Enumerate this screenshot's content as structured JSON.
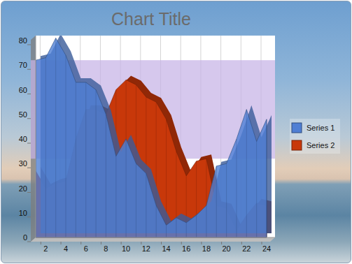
{
  "chart_data": {
    "type": "area",
    "title": "Chart Title",
    "x": [
      1,
      2,
      3,
      4,
      5,
      6,
      7,
      8,
      9,
      10,
      11,
      12,
      13,
      14,
      15,
      16,
      17,
      18,
      19,
      20,
      21,
      22,
      23,
      24
    ],
    "xlim": [
      1,
      24
    ],
    "xticks": [
      2,
      4,
      6,
      8,
      10,
      12,
      14,
      16,
      18,
      20,
      22,
      24
    ],
    "ylim": [
      0,
      82
    ],
    "yticks": [
      0,
      10,
      20,
      30,
      40,
      50,
      60,
      70,
      80
    ],
    "grid": true,
    "legend": "right",
    "plot_band": {
      "from": 32,
      "to": 72
    },
    "series": [
      {
        "name": "Series 1",
        "color": "#4f7fd4",
        "values": [
          72,
          73,
          81,
          74,
          63,
          63,
          60,
          50,
          33,
          40,
          30,
          26,
          13,
          5,
          8,
          6,
          9,
          13,
          29,
          30,
          40,
          52,
          39,
          48
        ]
      },
      {
        "name": "Series 2",
        "color": "#c8380a",
        "values": [
          27,
          20,
          22,
          23,
          40,
          52,
          52,
          50,
          60,
          64,
          62,
          57,
          55,
          48,
          35,
          25,
          31,
          32,
          13,
          12,
          3,
          9,
          14,
          13
        ]
      }
    ]
  }
}
